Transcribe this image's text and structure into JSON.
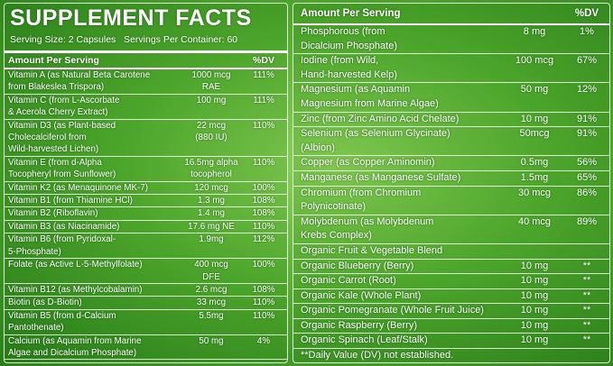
{
  "left": {
    "title": "SUPPLEMENT FACTS",
    "serving": "Serving Size: 2 Capsules   Servings Per Container: 60",
    "header": {
      "amount": "Amount Per Serving",
      "dv": "%DV"
    },
    "rows": [
      {
        "name": [
          "Vitamin A (as Natural Beta Carotene",
          "from Blakeslea Trispora)"
        ],
        "amount": [
          "1000 mcg",
          "RAE"
        ],
        "dv": "111%"
      },
      {
        "name": [
          "Vitamin C (from L-Ascorbate",
          "& Acerola Cherry Extract)"
        ],
        "amount": [
          "100 mg"
        ],
        "dv": "111%"
      },
      {
        "name": [
          "Vitamin D3 (as Plant-based",
          "Cholecalciferol from",
          "Wild-harvested Lichen)"
        ],
        "amount": [
          "22 mcg",
          "(880 IU)"
        ],
        "dv": "110%"
      },
      {
        "name": [
          "Vitamin E (from d-Alpha",
          "Tocopheryl from Sunflower)"
        ],
        "amount": [
          "16.5mg alpha",
          "tocopherol"
        ],
        "dv": "110%"
      },
      {
        "name": [
          "Vitamin K2 (as Menaquinone MK-7)"
        ],
        "amount": [
          "120 mcg"
        ],
        "dv": "100%"
      },
      {
        "name": [
          "Vitamin B1 (from Thiamine HCl)"
        ],
        "amount": [
          "1.3 mg"
        ],
        "dv": "108%"
      },
      {
        "name": [
          "Vitamin B2 (Riboflavin)"
        ],
        "amount": [
          "1.4 mg"
        ],
        "dv": "108%"
      },
      {
        "name": [
          "Vitamin B3 (as Niacinamide)"
        ],
        "amount": [
          "17.6 mg NE"
        ],
        "dv": "110%"
      },
      {
        "name": [
          "Vitamin B6 (from Pyridoxal-",
          "5-Phosphate)"
        ],
        "amount": [
          "1.9mg"
        ],
        "dv": "112%"
      },
      {
        "name": [
          "Folate (as Active L-5-Methylfolate)"
        ],
        "amount": [
          "400 mcg",
          "DFE"
        ],
        "dv": "100%"
      },
      {
        "name": [
          "Vitamin B12 (as Methylcobalamin)"
        ],
        "amount": [
          "2.6 mcg"
        ],
        "dv": "108%"
      },
      {
        "name": [
          "Biotin (as D-Biotin)"
        ],
        "amount": [
          "33 mcg"
        ],
        "dv": "110%"
      },
      {
        "name": [
          "Vitamin B5 (from d-Calcium",
          "Pantothenate)"
        ],
        "amount": [
          "5.5mg"
        ],
        "dv": "110%"
      },
      {
        "name": [
          "Calcium (as Aquamin from Marine",
          "Algae and Dicalcium Phosphate)"
        ],
        "amount": [
          "50 mg"
        ],
        "dv": "4%"
      }
    ]
  },
  "right": {
    "header": {
      "amount": "Amount Per Serving",
      "dv": "%DV"
    },
    "rows": [
      {
        "name": [
          "Phosphorous (from",
          "Dicalcium Phosphate)"
        ],
        "amount": [
          "8 mg"
        ],
        "dv": "1%"
      },
      {
        "name": [
          "Iodine (from Wild,",
          "Hand-harvested Kelp)"
        ],
        "amount": [
          "100 mcg"
        ],
        "dv": "67%"
      },
      {
        "name": [
          "Magnesium (as Aquamin",
          "Magnesium from Marine Algae)"
        ],
        "amount": [
          "50 mg"
        ],
        "dv": "12%"
      },
      {
        "name": [
          "Zinc (from Zinc Amino Acid Chelate)"
        ],
        "amount": [
          "10 mg"
        ],
        "dv": "91%"
      },
      {
        "name": [
          "Selenium (as Selenium Glycinate)",
          "(Albion)"
        ],
        "amount": [
          "50mcg"
        ],
        "dv": "91%"
      },
      {
        "name": [
          "Copper (as Copper Aminomin)"
        ],
        "amount": [
          "0.5mg"
        ],
        "dv": "56%"
      },
      {
        "name": [
          "Manganese (as Manganese Sulfate)"
        ],
        "amount": [
          "1.5mg"
        ],
        "dv": "65%"
      },
      {
        "name": [
          "Chromium (from Chromium",
          "Polynicotinate)"
        ],
        "amount": [
          "30 mcg"
        ],
        "dv": "86%"
      },
      {
        "name": [
          "Molybdenum (as Molybdenum",
          "Krebs Complex)"
        ],
        "amount": [
          "40 mcg"
        ],
        "dv": "89%"
      },
      {
        "name": [
          "Organic Fruit & Vegetable Blend"
        ]
      },
      {
        "name": [
          "Organic Blueberry (Berry)"
        ],
        "amount": [
          "10 mg"
        ],
        "dv": "**"
      },
      {
        "name": [
          "Organic Carrot (Root)"
        ],
        "amount": [
          "10 mg"
        ],
        "dv": "**"
      },
      {
        "name": [
          "Organic Kale (Whole Plant)"
        ],
        "amount": [
          "10 mg"
        ],
        "dv": "**"
      },
      {
        "name": [
          "Organic Pomegranate (Whole Fruit Juice)"
        ],
        "amount": [
          "10 mg"
        ],
        "dv": "**"
      },
      {
        "name": [
          "Organic Raspberry (Berry)"
        ],
        "amount": [
          "10 mg"
        ],
        "dv": "**"
      },
      {
        "name": [
          "Organic Spinach (Leaf/Stalk)"
        ],
        "amount": [
          "10 mg"
        ],
        "dv": "**"
      }
    ],
    "footnote": "**Daily Value (DV) not established."
  }
}
